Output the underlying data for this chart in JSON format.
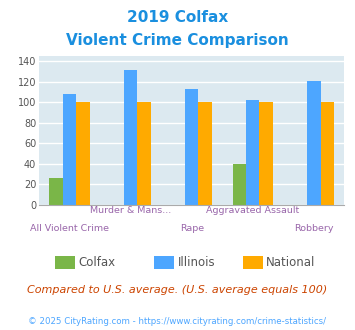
{
  "title_line1": "2019 Colfax",
  "title_line2": "Violent Crime Comparison",
  "categories": [
    "All Violent Crime",
    "Murder & Mans...",
    "Rape",
    "Aggravated Assault",
    "Robbery"
  ],
  "colfax": [
    26,
    0,
    0,
    40,
    0
  ],
  "illinois": [
    108,
    131,
    113,
    102,
    121
  ],
  "national": [
    100,
    100,
    100,
    100,
    100
  ],
  "colfax_color": "#7ab648",
  "illinois_color": "#4da6ff",
  "national_color": "#ffaa00",
  "ylim": [
    0,
    145
  ],
  "yticks": [
    0,
    20,
    40,
    60,
    80,
    100,
    120,
    140
  ],
  "legend_labels": [
    "Colfax",
    "Illinois",
    "National"
  ],
  "note": "Compared to U.S. average. (U.S. average equals 100)",
  "footer": "© 2025 CityRating.com - https://www.cityrating.com/crime-statistics/",
  "title_color": "#1a8fdf",
  "note_color": "#cc4400",
  "footer_color": "#4da6ff",
  "bg_color": "#dce9f0",
  "x_label_color": "#9966aa",
  "bar_width": 0.22,
  "grid_color": "#ffffff",
  "x_labels_top": [
    "",
    "Murder & Mans...",
    "",
    "Aggravated Assault",
    ""
  ],
  "x_labels_bot": [
    "All Violent Crime",
    "",
    "Rape",
    "",
    "Robbery"
  ]
}
